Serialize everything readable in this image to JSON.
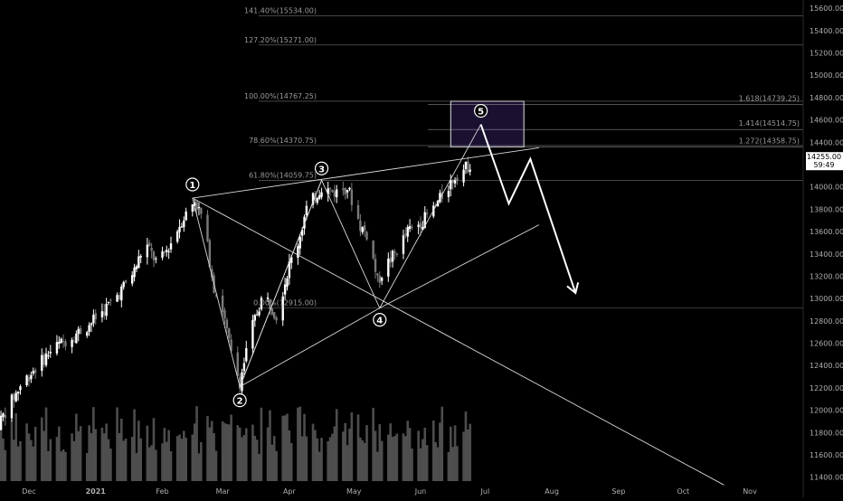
{
  "colors": {
    "background": "#000000",
    "bull": "#ffffff",
    "bear": "#7a7a7a",
    "volume": "#5a5a5a",
    "drawing": "#d9d9d9",
    "fib_line": "#bfbfbf",
    "fib_text": "#9a9a9a",
    "target_box": "#1a1030",
    "price_tag_bg": "#ffffff",
    "price_tag_text": "#000000",
    "axis_text": "#b0b0b0"
  },
  "chart_data": {
    "type": "candlestick",
    "symbol": "",
    "ylim": [
      11300,
      15650
    ],
    "y_ticks": [
      11400,
      11600,
      11800,
      12000,
      12200,
      12400,
      12600,
      12800,
      13000,
      13200,
      13400,
      13600,
      13800,
      14000,
      14200,
      14400,
      14600,
      14800,
      15000,
      15200,
      15400,
      15600
    ],
    "y_tick_labels": [
      "11400.00",
      "11600.00",
      "11800.00",
      "12000.00",
      "12200.00",
      "12400.00",
      "12600.00",
      "12800.00",
      "13000.00",
      "13200.00",
      "13400.00",
      "13600.00",
      "13800.00",
      "14000.00",
      "14200.00",
      "14400.00",
      "14600.00",
      "14800.00",
      "15000.00",
      "15200.00",
      "15400.00",
      "15600.00"
    ],
    "x_ticks": [
      {
        "label": "Dec",
        "date": "2020-12-01"
      },
      {
        "label": "2021",
        "date": "2021-01-01"
      },
      {
        "label": "Feb",
        "date": "2021-02-01"
      },
      {
        "label": "Mar",
        "date": "2021-03-01"
      },
      {
        "label": "Apr",
        "date": "2021-04-01"
      },
      {
        "label": "May",
        "date": "2021-05-01"
      },
      {
        "label": "Jun",
        "date": "2021-06-01"
      },
      {
        "label": "Jul",
        "date": "2021-07-01"
      },
      {
        "label": "Aug",
        "date": "2021-08-01"
      },
      {
        "label": "Sep",
        "date": "2021-09-01"
      },
      {
        "label": "Oct",
        "date": "2021-10-01"
      },
      {
        "label": "Nov",
        "date": "2021-11-01"
      }
    ],
    "price_path": [
      [
        "2020-11-16",
        11850
      ],
      [
        "2020-11-22",
        12050
      ],
      [
        "2020-11-28",
        12250
      ],
      [
        "2020-12-05",
        12400
      ],
      [
        "2020-12-12",
        12550
      ],
      [
        "2020-12-20",
        12650
      ],
      [
        "2020-12-28",
        12750
      ],
      [
        "2021-01-05",
        12900
      ],
      [
        "2021-01-12",
        13050
      ],
      [
        "2021-01-19",
        13250
      ],
      [
        "2021-01-24",
        13500
      ],
      [
        "2021-01-30",
        13300
      ],
      [
        "2021-02-05",
        13500
      ],
      [
        "2021-02-10",
        13700
      ],
      [
        "2021-02-16",
        13880
      ],
      [
        "2021-02-20",
        13700
      ],
      [
        "2021-02-25",
        13100
      ],
      [
        "2021-03-01",
        12900
      ],
      [
        "2021-03-05",
        12500
      ],
      [
        "2021-03-09",
        12250
      ],
      [
        "2021-03-14",
        12700
      ],
      [
        "2021-03-20",
        13050
      ],
      [
        "2021-03-26",
        12850
      ],
      [
        "2021-04-01",
        13300
      ],
      [
        "2021-04-05",
        13500
      ],
      [
        "2021-04-09",
        13800
      ],
      [
        "2021-04-16",
        14000
      ],
      [
        "2021-04-22",
        13950
      ],
      [
        "2021-04-28",
        14000
      ],
      [
        "2021-05-04",
        13650
      ],
      [
        "2021-05-08",
        13550
      ],
      [
        "2021-05-12",
        13150
      ],
      [
        "2021-05-16",
        13300
      ],
      [
        "2021-05-20",
        13400
      ],
      [
        "2021-05-26",
        13600
      ],
      [
        "2021-06-02",
        13700
      ],
      [
        "2021-06-07",
        13800
      ],
      [
        "2021-06-12",
        13950
      ],
      [
        "2021-06-17",
        14100
      ],
      [
        "2021-06-24",
        14200
      ]
    ],
    "waves": [
      {
        "label": "1",
        "date": "2021-02-15",
        "price": 13900
      },
      {
        "label": "2",
        "date": "2021-03-09",
        "price": 12210
      },
      {
        "label": "3",
        "date": "2021-04-16",
        "price": 14060
      },
      {
        "label": "4",
        "date": "2021-05-13",
        "price": 12915
      },
      {
        "label": "5",
        "date": "2021-06-29",
        "price": 14560
      }
    ],
    "projection": [
      {
        "date": "2021-06-29",
        "price": 14560
      },
      {
        "date": "2021-07-12",
        "price": 13850
      },
      {
        "date": "2021-07-22",
        "price": 14250
      },
      {
        "date": "2021-08-12",
        "price": 13050
      }
    ],
    "trendlines": [
      {
        "from": {
          "date": "2021-02-15",
          "price": 13900
        },
        "to": {
          "date": "2021-07-26",
          "price": 14350
        }
      },
      {
        "from": {
          "date": "2021-03-09",
          "price": 12210
        },
        "to": {
          "date": "2021-04-16",
          "price": 14060
        }
      },
      {
        "from": {
          "date": "2021-03-09",
          "price": 12210
        },
        "to": {
          "date": "2021-05-13",
          "price": 12915
        }
      },
      {
        "from": {
          "date": "2021-05-13",
          "price": 12915
        },
        "to": {
          "date": "2021-07-26",
          "price": 13660
        }
      },
      {
        "from": {
          "date": "2021-02-15",
          "price": 13900
        },
        "to": {
          "date": "2021-10-20",
          "price": 11330
        }
      }
    ],
    "fib_left": [
      {
        "label": "141.40%(15534.00)",
        "price": 15534
      },
      {
        "label": "127.20%(15271.00)",
        "price": 15271
      },
      {
        "label": "100.00%(14767.25)",
        "price": 14767.25
      },
      {
        "label": "78.60%(14370.75)",
        "price": 14370.75
      },
      {
        "label": "61.80%(14059.75)",
        "price": 14059.75
      },
      {
        "label": "0.00%(12915.00)",
        "price": 12915
      }
    ],
    "fib_right": [
      {
        "label": "1.618(14739.25)",
        "price": 14739.25
      },
      {
        "label": "1.414(14514.75)",
        "price": 14514.75
      },
      {
        "label": "1.272(14358.75)",
        "price": 14358.75
      }
    ],
    "target_zone": {
      "from_date": "2021-06-15",
      "to_date": "2021-07-19",
      "top": 14767.25,
      "bottom": 14358.75
    },
    "last_price": {
      "price": 14255,
      "label": "14255.00",
      "countdown": "59:49"
    }
  }
}
